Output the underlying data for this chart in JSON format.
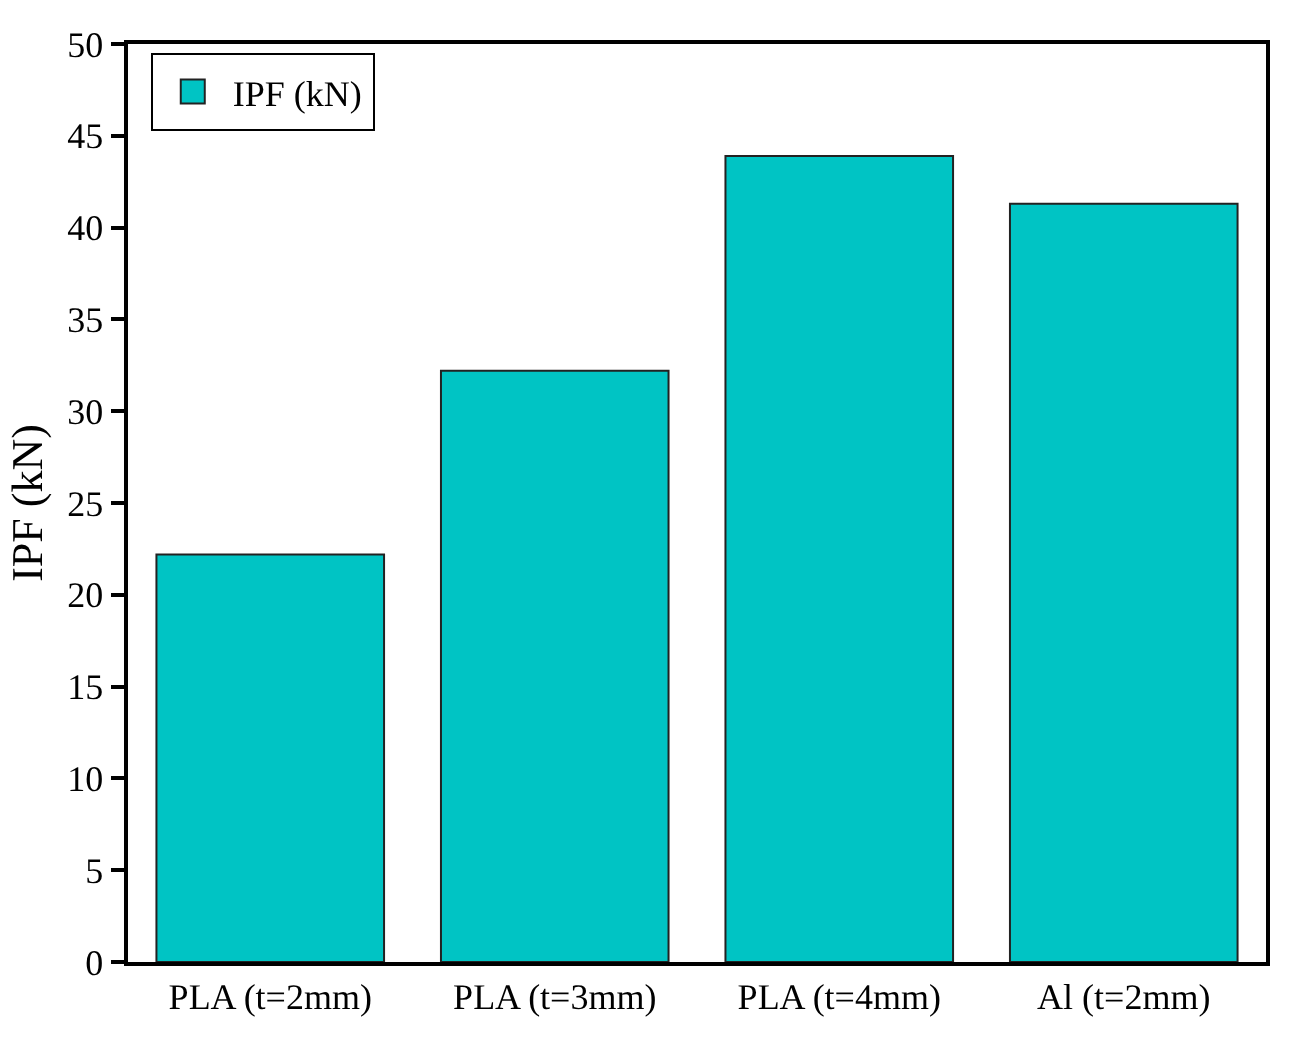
{
  "chart_data": {
    "type": "bar",
    "ylabel": "IPF (kN)",
    "categories": [
      "PLA (t=2mm)",
      "PLA (t=3mm)",
      "PLA (t=4mm)",
      "Al (t=2mm)"
    ],
    "series": [
      {
        "name": "IPF (kN)",
        "color": "#00c4c4",
        "values": [
          22.2,
          32.2,
          43.9,
          41.3
        ]
      }
    ],
    "ylim": [
      0,
      50
    ],
    "yticks": [
      0,
      5,
      10,
      15,
      20,
      25,
      30,
      35,
      40,
      45,
      50
    ],
    "legend": "top left",
    "grid": false
  }
}
